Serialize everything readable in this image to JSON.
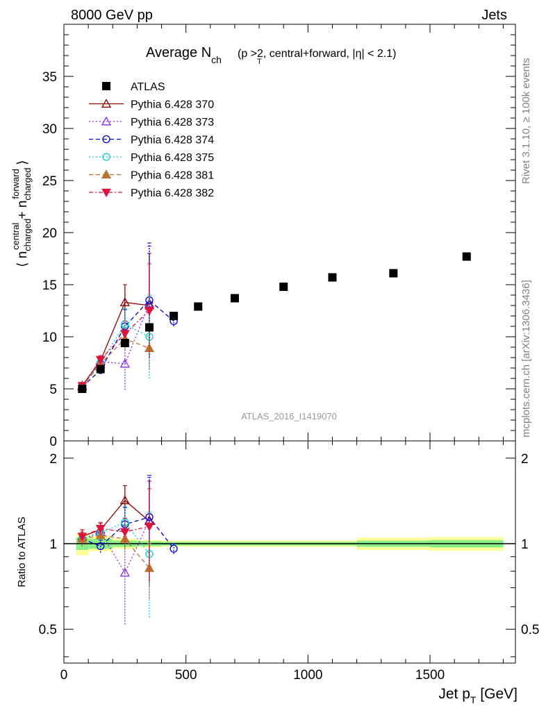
{
  "header": {
    "energy": "8000 GeV pp",
    "process": "Jets"
  },
  "side": {
    "rivet": "Rivet 3.1.10, ≥ 100k events",
    "mcplots": "mcplots.cern.ch [arXiv:1306.3436]"
  },
  "chart_data": {
    "type": "scatter",
    "title_main": "Average N",
    "title_sub": "ch",
    "title_rest": "(p  >2, central+forward, |η| < 2.1)",
    "title_rest_sub": "T",
    "watermark": "ATLAS_2016_I1419070",
    "ylabel": "⟨ n_charged^central + n_charged^forward ⟩",
    "ratio_ylabel": "Ratio to ATLAS",
    "xlabel": "Jet p_T [GeV]",
    "xlim": [
      0,
      1850
    ],
    "ylim": [
      0,
      40
    ],
    "ratio_ylim": [
      0.38,
      2.3
    ],
    "x_ticks": [
      "0",
      "500",
      "1000",
      "1500"
    ],
    "y_ticks": [
      "0",
      "5",
      "10",
      "15",
      "20",
      "25",
      "30",
      "35"
    ],
    "ratio_ticks": [
      "0.5",
      "1",
      "2"
    ],
    "legend_position": "top-left",
    "reference": {
      "name": "ATLAS",
      "x": [
        75,
        150,
        250,
        350,
        450,
        550,
        700,
        900,
        1100,
        1350,
        1650
      ],
      "y": [
        5.0,
        6.9,
        9.4,
        10.9,
        12.0,
        12.9,
        13.7,
        14.8,
        15.7,
        16.1,
        17.7
      ],
      "bins": [
        [
          50,
          100
        ],
        [
          100,
          200
        ],
        [
          200,
          300
        ],
        [
          300,
          400
        ],
        [
          400,
          500
        ],
        [
          500,
          600
        ],
        [
          600,
          800
        ],
        [
          800,
          1000
        ],
        [
          1000,
          1200
        ],
        [
          1200,
          1500
        ],
        [
          1500,
          1800
        ]
      ],
      "band_inner": [
        0.05,
        0.04,
        0.025,
        0.02,
        0.015,
        0.015,
        0.015,
        0.015,
        0.015,
        0.025,
        0.03
      ],
      "band_outer": [
        0.09,
        0.06,
        0.04,
        0.03,
        0.025,
        0.025,
        0.025,
        0.025,
        0.025,
        0.05,
        0.055
      ]
    },
    "series": [
      {
        "name": "Pythia 6.428 370",
        "color": "#8b0000",
        "dash": "",
        "marker": "triangle-open",
        "x": [
          75,
          150,
          250,
          350
        ],
        "y": [
          5.3,
          7.7,
          13.3,
          13.0
        ],
        "err": [
          0.3,
          0.4,
          1.7,
          5.0
        ],
        "ratio": [
          1.06,
          1.12,
          1.42,
          1.2
        ],
        "ratio_err": [
          0.06,
          0.06,
          0.18,
          0.46
        ]
      },
      {
        "name": "Pythia 6.428 373",
        "color": "#8a2be2",
        "dash": "2,3",
        "marker": "triangle-open",
        "x": [
          75,
          150,
          250,
          350
        ],
        "y": [
          5.2,
          7.6,
          7.4,
          13.2
        ],
        "err": [
          0.3,
          0.4,
          2.5,
          5.5
        ],
        "ratio": [
          1.04,
          1.1,
          0.79,
          1.21
        ],
        "ratio_err": [
          0.06,
          0.06,
          0.27,
          0.5
        ]
      },
      {
        "name": "Pythia 6.428 374",
        "color": "#0000cd",
        "dash": "6,4",
        "marker": "circle-open",
        "x": [
          75,
          150,
          250,
          350,
          450
        ],
        "y": [
          5.2,
          6.8,
          11.0,
          13.5,
          11.5
        ],
        "err": [
          0.3,
          0.3,
          1.6,
          5.5,
          0.5
        ],
        "ratio": [
          1.04,
          0.98,
          1.17,
          1.24,
          0.96
        ],
        "ratio_err": [
          0.06,
          0.05,
          0.17,
          0.5,
          0.04
        ]
      },
      {
        "name": "Pythia 6.428 375",
        "color": "#00ced1",
        "dash": "2,3",
        "marker": "circle-open",
        "x": [
          75,
          150,
          250,
          350
        ],
        "y": [
          5.2,
          7.5,
          11.2,
          10.0
        ],
        "err": [
          0.3,
          0.4,
          1.5,
          4.0
        ],
        "ratio": [
          1.04,
          1.09,
          1.19,
          0.92
        ],
        "ratio_err": [
          0.06,
          0.06,
          0.16,
          0.37
        ]
      },
      {
        "name": "Pythia 6.428 381",
        "color": "#b87333",
        "dash": "6,4",
        "marker": "triangle-filled",
        "x": [
          75,
          150,
          250,
          350
        ],
        "y": [
          5.2,
          7.4,
          9.8,
          8.9
        ],
        "err": [
          0.3,
          0.4,
          1.0,
          2.0
        ],
        "ratio": [
          1.04,
          1.07,
          1.04,
          0.82
        ],
        "ratio_err": [
          0.06,
          0.06,
          0.11,
          0.18
        ]
      },
      {
        "name": "Pythia 6.428 382",
        "color": "#dc143c",
        "dash": "6,3,2,3",
        "marker": "triangle-down-filled",
        "x": [
          75,
          150,
          250,
          350
        ],
        "y": [
          5.3,
          7.8,
          10.3,
          12.5
        ],
        "err": [
          0.3,
          0.4,
          1.2,
          4.5
        ],
        "ratio": [
          1.06,
          1.13,
          1.1,
          1.15
        ],
        "ratio_err": [
          0.06,
          0.06,
          0.13,
          0.41
        ]
      }
    ]
  }
}
